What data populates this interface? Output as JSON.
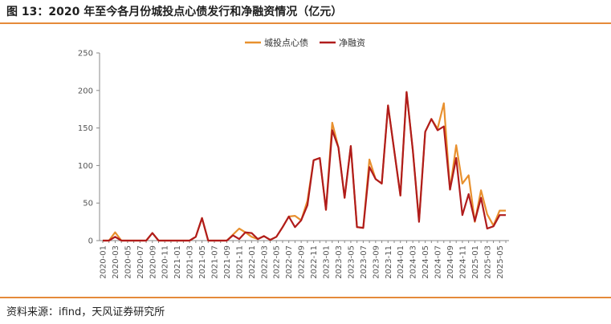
{
  "title": "图 13：2020 年至今各月份城投点心债发行和净融资情况（亿元）",
  "source": "资料来源：ifind，天风证券研究所",
  "colors": {
    "issuance": "#e8902e",
    "net": "#b01c1c",
    "rule": "#e58a3a"
  },
  "chart_data": {
    "type": "line",
    "ylim": [
      0,
      250
    ],
    "yticks": [
      0,
      50,
      100,
      150,
      200,
      250
    ],
    "legend_position": "top-center",
    "xtick_labels": [
      "2020-01",
      "2020-03",
      "2020-05",
      "2020-07",
      "2020-09",
      "2020-11",
      "2021-01",
      "2021-03",
      "2021-05",
      "2021-07",
      "2021-09",
      "2021-11",
      "2022-01",
      "2022-03",
      "2022-05",
      "2022-07",
      "2022-09",
      "2022-11",
      "2023-01",
      "2023-03",
      "2023-05",
      "2023-07",
      "2023-09",
      "2023-11",
      "2024-01",
      "2024-03",
      "2024-05",
      "2024-07",
      "2024-09",
      "2024-11",
      "2025-01",
      "2025-03",
      "2025-05"
    ],
    "x": [
      "2020-01",
      "2020-02",
      "2020-03",
      "2020-04",
      "2020-05",
      "2020-06",
      "2020-07",
      "2020-08",
      "2020-09",
      "2020-10",
      "2020-11",
      "2020-12",
      "2021-01",
      "2021-02",
      "2021-03",
      "2021-04",
      "2021-05",
      "2021-06",
      "2021-07",
      "2021-08",
      "2021-09",
      "2021-10",
      "2021-11",
      "2021-12",
      "2022-01",
      "2022-02",
      "2022-03",
      "2022-04",
      "2022-05",
      "2022-06",
      "2022-07",
      "2022-08",
      "2022-09",
      "2022-10",
      "2022-11",
      "2022-12",
      "2023-01",
      "2023-02",
      "2023-03",
      "2023-04",
      "2023-05",
      "2023-06",
      "2023-07",
      "2023-08",
      "2023-09",
      "2023-10",
      "2023-11",
      "2023-12",
      "2024-01",
      "2024-02",
      "2024-03",
      "2024-04",
      "2024-05",
      "2024-06",
      "2024-07",
      "2024-08",
      "2024-09",
      "2024-10",
      "2024-11",
      "2024-12",
      "2025-01",
      "2025-02",
      "2025-03",
      "2025-04",
      "2025-05",
      "2025-06"
    ],
    "series": [
      {
        "name": "城投点心债",
        "values": [
          0,
          0,
          11,
          0,
          0,
          0,
          0,
          0,
          10,
          0,
          0,
          0,
          0,
          0,
          0,
          5,
          30,
          0,
          0,
          0,
          0,
          8,
          16,
          11,
          5,
          2,
          6,
          1,
          5,
          18,
          32,
          33,
          27,
          53,
          107,
          110,
          41,
          157,
          124,
          57,
          126,
          18,
          17,
          108,
          82,
          76,
          180,
          120,
          60,
          198,
          120,
          27,
          145,
          162,
          149,
          183,
          68,
          127,
          76,
          87,
          25,
          67,
          35,
          20,
          40,
          40
        ]
      },
      {
        "name": "净融资",
        "values": [
          0,
          0,
          5,
          0,
          0,
          0,
          0,
          0,
          10,
          0,
          0,
          0,
          0,
          0,
          0,
          5,
          30,
          0,
          0,
          0,
          0,
          7,
          2,
          11,
          10,
          2,
          6,
          1,
          5,
          18,
          32,
          18,
          27,
          47,
          107,
          110,
          41,
          147,
          124,
          57,
          126,
          18,
          17,
          98,
          82,
          76,
          180,
          120,
          60,
          198,
          120,
          25,
          145,
          162,
          147,
          152,
          68,
          110,
          34,
          62,
          26,
          57,
          16,
          19,
          34,
          34
        ]
      }
    ]
  }
}
